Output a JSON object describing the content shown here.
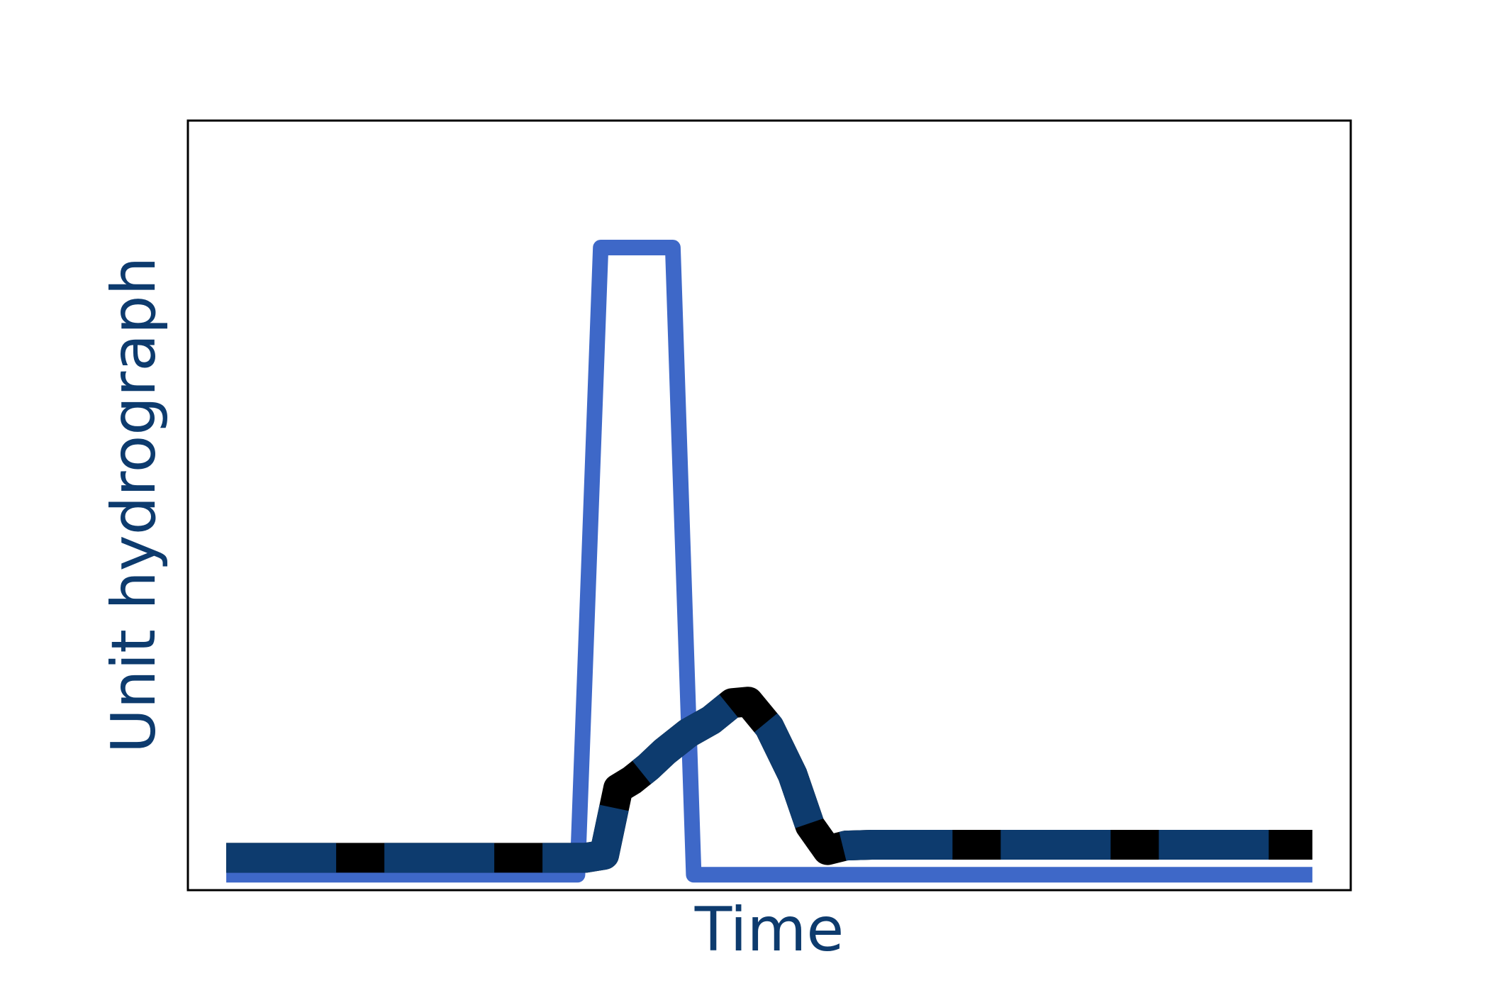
{
  "chart_data": {
    "type": "line",
    "xlabel": "Time",
    "ylabel": "Unit hydrograph",
    "xlim": [
      0,
      100
    ],
    "ylim": [
      0,
      100
    ],
    "xticks": [],
    "yticks": [],
    "grid": false,
    "legend": "none",
    "colors": {
      "label": "#0d3b6e",
      "impulse": "#3e68c8",
      "response_outline": "#000000",
      "response_dash": "#0d3b6e",
      "frame": "#000000"
    },
    "series": [
      {
        "style": "impulse",
        "x": [
          3.3,
          33.5,
          35.5,
          41.7,
          43.5,
          96.7
        ],
        "y": [
          2,
          2,
          83.5,
          83.5,
          2,
          2
        ]
      },
      {
        "style": "response",
        "x": [
          3.3,
          34.2,
          35.8,
          37,
          38.2,
          39.6,
          41,
          43,
          45,
          46.8,
          48.2,
          50,
          52,
          53.5,
          55,
          56.6,
          58.8,
          96.7
        ],
        "y": [
          4.2,
          4.2,
          4.6,
          13.2,
          14.3,
          16,
          18,
          20.4,
          22.1,
          24.3,
          24.5,
          21.2,
          15,
          8.4,
          5.2,
          5.8,
          5.9,
          5.9
        ]
      }
    ]
  }
}
